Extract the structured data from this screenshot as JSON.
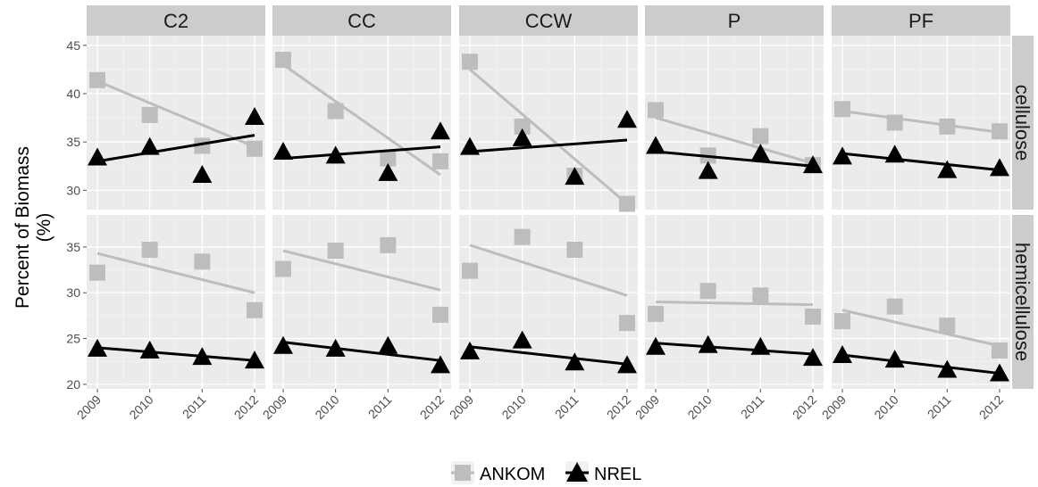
{
  "chart_data": {
    "type": "scatter",
    "facet_columns": [
      "C2",
      "CC",
      "CCW",
      "P",
      "PF"
    ],
    "facet_rows": [
      "cellulose",
      "hemicellulose"
    ],
    "ylabel": "Percent of Biomass\n(%)",
    "xlabel": "",
    "x": [
      "2009",
      "2010",
      "2011",
      "2012"
    ],
    "legend": {
      "position": "bottom",
      "entries": [
        "ANKOM",
        "NREL"
      ]
    },
    "grid": true,
    "colors": {
      "ANKOM": "#bdbdbd",
      "NREL": "#000000",
      "panel_bg": "#ebebeb",
      "strip_bg": "#cccccc",
      "grid_major": "#ffffff",
      "grid_minor": "#f4f4f4"
    },
    "rows": [
      {
        "name": "cellulose",
        "ylim": [
          28,
          46
        ],
        "yticks": [
          30,
          35,
          40,
          45
        ],
        "panels": [
          {
            "facet": "C2",
            "ANKOM": {
              "values": [
                41.4,
                37.8,
                34.6,
                34.3
              ],
              "fit": [
                41.3,
                34.5
              ]
            },
            "NREL": {
              "values": [
                33.4,
                34.5,
                31.6,
                37.6
              ],
              "fit": [
                33.0,
                35.7
              ]
            }
          },
          {
            "facet": "CC",
            "ANKOM": {
              "values": [
                43.5,
                38.2,
                33.3,
                33.0
              ],
              "fit": [
                43.0,
                31.6
              ]
            },
            "NREL": {
              "values": [
                34.0,
                33.6,
                31.8,
                36.1
              ],
              "fit": [
                33.3,
                34.5
              ]
            }
          },
          {
            "facet": "CCW",
            "ANKOM": {
              "values": [
                43.3,
                36.6,
                31.5,
                28.6
              ],
              "fit": [
                42.5,
                28.6
              ]
            },
            "NREL": {
              "values": [
                34.5,
                35.4,
                31.4,
                37.3
              ],
              "fit": [
                34.0,
                35.2
              ]
            }
          },
          {
            "facet": "P",
            "ANKOM": {
              "values": [
                38.3,
                33.6,
                35.6,
                32.6
              ],
              "fit": [
                37.5,
                32.8
              ]
            },
            "NREL": {
              "values": [
                34.6,
                32.0,
                33.8,
                32.6
              ],
              "fit": [
                34.0,
                32.5
              ]
            }
          },
          {
            "facet": "PF",
            "ANKOM": {
              "values": [
                38.4,
                37.0,
                36.6,
                36.1
              ],
              "fit": [
                38.2,
                36.0
              ]
            },
            "NREL": {
              "values": [
                33.5,
                33.7,
                32.1,
                32.3
              ],
              "fit": [
                33.8,
                32.1
              ]
            }
          }
        ]
      },
      {
        "name": "hemicellulose",
        "ylim": [
          19.5,
          38.5
        ],
        "yticks": [
          20,
          25,
          30,
          35
        ],
        "panels": [
          {
            "facet": "C2",
            "ANKOM": {
              "values": [
                32.2,
                34.7,
                33.4,
                28.1
              ],
              "fit": [
                34.3,
                30.0
              ]
            },
            "NREL": {
              "values": [
                23.9,
                23.7,
                23.0,
                22.6
              ],
              "fit": [
                24.0,
                22.6
              ]
            }
          },
          {
            "facet": "CC",
            "ANKOM": {
              "values": [
                32.6,
                34.6,
                35.2,
                27.6
              ],
              "fit": [
                34.6,
                30.3
              ]
            },
            "NREL": {
              "values": [
                24.2,
                23.9,
                24.2,
                22.1
              ],
              "fit": [
                24.6,
                22.6
              ]
            }
          },
          {
            "facet": "CCW",
            "ANKOM": {
              "values": [
                32.4,
                36.1,
                34.7,
                26.7
              ],
              "fit": [
                35.2,
                29.7
              ]
            },
            "NREL": {
              "values": [
                23.6,
                24.8,
                22.4,
                22.1
              ],
              "fit": [
                24.1,
                22.2
              ]
            }
          },
          {
            "facet": "P",
            "ANKOM": {
              "values": [
                27.7,
                30.2,
                29.7,
                27.4
              ],
              "fit": [
                29.0,
                28.7
              ]
            },
            "NREL": {
              "values": [
                24.1,
                24.3,
                24.1,
                22.9
              ],
              "fit": [
                24.5,
                23.3
              ]
            }
          },
          {
            "facet": "PF",
            "ANKOM": {
              "values": [
                26.9,
                28.5,
                26.4,
                23.7
              ],
              "fit": [
                28.1,
                24.2
              ]
            },
            "NREL": {
              "values": [
                23.2,
                22.7,
                21.6,
                21.2
              ],
              "fit": [
                23.2,
                21.2
              ]
            }
          }
        ]
      }
    ]
  }
}
